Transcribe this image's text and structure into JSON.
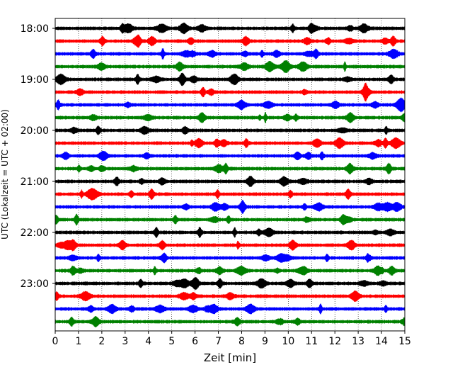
{
  "chart_data": {
    "type": "line",
    "title": "",
    "xlabel": "Zeit  [min]",
    "ylabel": "UTC (Lokalzeit = UTC + 02:00)",
    "xlim": [
      0,
      15
    ],
    "xticks": [
      "0",
      "1",
      "2",
      "3",
      "4",
      "5",
      "6",
      "7",
      "8",
      "9",
      "10",
      "11",
      "12",
      "13",
      "14",
      "15"
    ],
    "y_tick_labels": [
      "18:00",
      "19:00",
      "20:00",
      "21:00",
      "22:00",
      "23:00"
    ],
    "grid": "vertical dotted lines at each minute",
    "trace_color_cycle": [
      "#000000",
      "#ff0000",
      "#0000ff",
      "#008000"
    ],
    "traces": [
      {
        "start": "18:00",
        "color": "#000000"
      },
      {
        "start": "18:15",
        "color": "#ff0000"
      },
      {
        "start": "18:30",
        "color": "#0000ff"
      },
      {
        "start": "18:45",
        "color": "#008000"
      },
      {
        "start": "19:00",
        "color": "#000000"
      },
      {
        "start": "19:15",
        "color": "#ff0000"
      },
      {
        "start": "19:30",
        "color": "#0000ff"
      },
      {
        "start": "19:45",
        "color": "#008000"
      },
      {
        "start": "20:00",
        "color": "#000000"
      },
      {
        "start": "20:15",
        "color": "#ff0000"
      },
      {
        "start": "20:30",
        "color": "#0000ff"
      },
      {
        "start": "20:45",
        "color": "#008000"
      },
      {
        "start": "21:00",
        "color": "#000000"
      },
      {
        "start": "21:15",
        "color": "#ff0000"
      },
      {
        "start": "21:30",
        "color": "#0000ff"
      },
      {
        "start": "21:45",
        "color": "#008000"
      },
      {
        "start": "22:00",
        "color": "#000000"
      },
      {
        "start": "22:15",
        "color": "#ff0000"
      },
      {
        "start": "22:30",
        "color": "#0000ff"
      },
      {
        "start": "22:45",
        "color": "#008000"
      },
      {
        "start": "23:00",
        "color": "#000000"
      },
      {
        "start": "23:15",
        "color": "#ff0000"
      },
      {
        "start": "23:30",
        "color": "#0000ff"
      },
      {
        "start": "23:45",
        "color": "#008000"
      }
    ]
  }
}
